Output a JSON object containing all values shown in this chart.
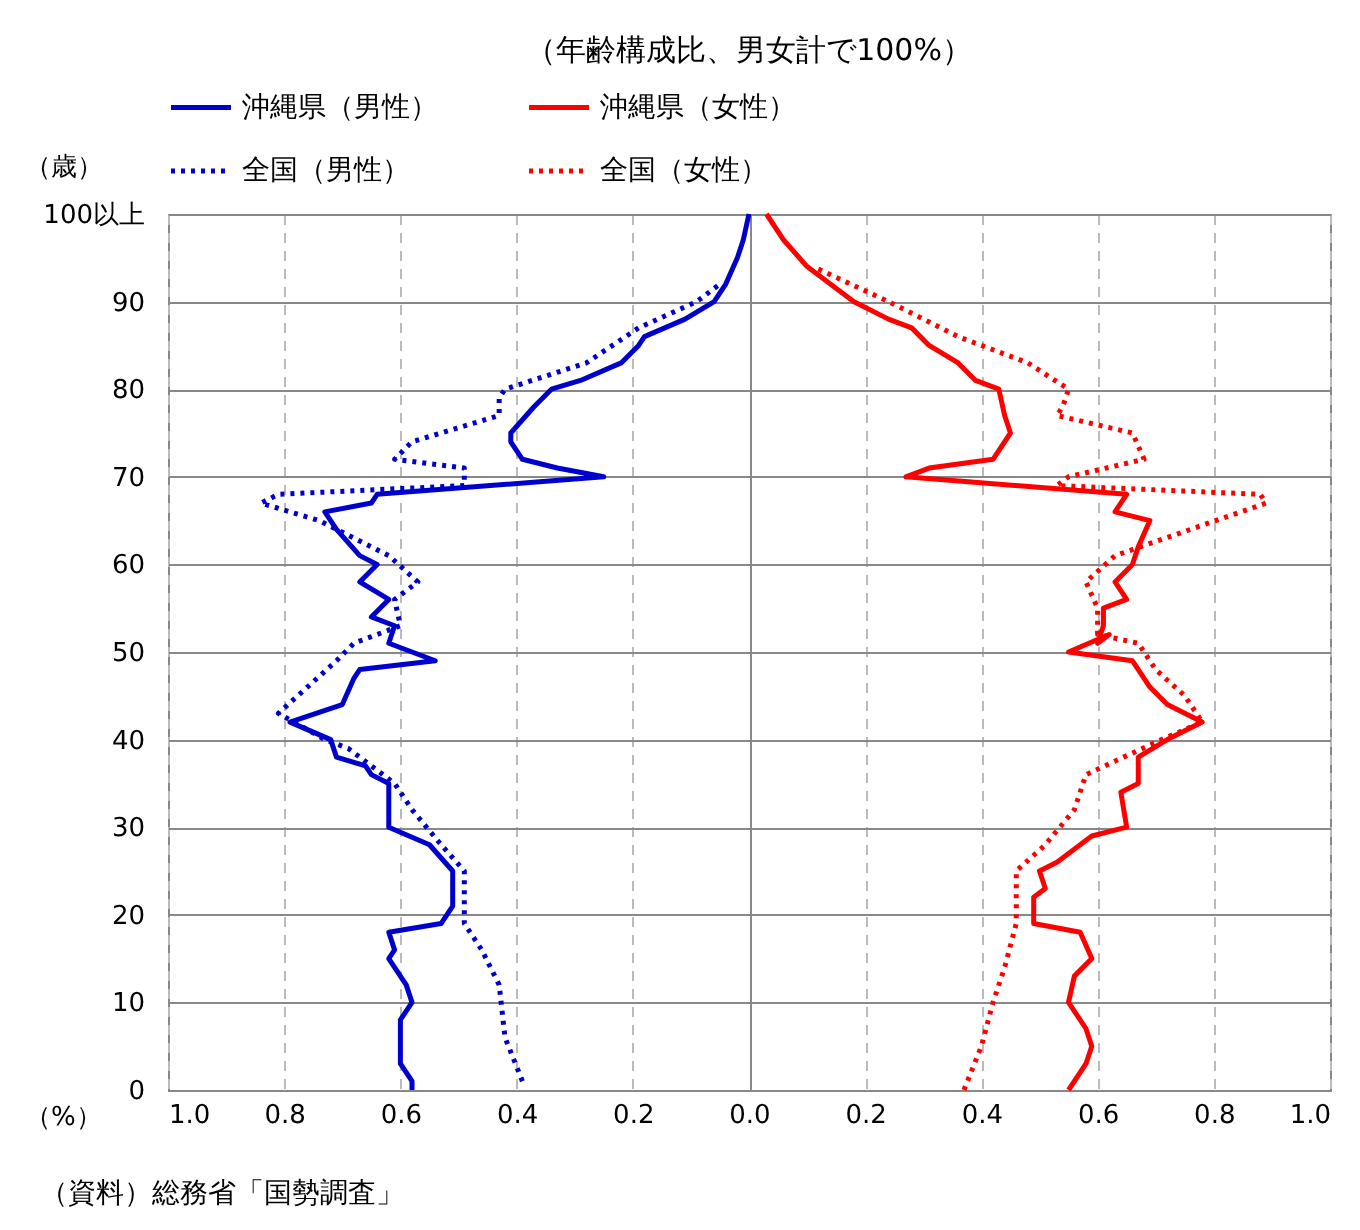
{
  "chart_data": {
    "type": "line",
    "title": "（年齢構成比、男女計で100%）",
    "xlabel": "（%）",
    "ylabel": "（歳）",
    "annotations": [
      "（資料）総務省「国勢調査」"
    ],
    "xlim": [
      -1,
      1
    ],
    "xticks": [
      {
        "value": -1,
        "label": "1.0"
      },
      {
        "value": -0.8,
        "label": "0.8"
      },
      {
        "value": -0.6,
        "label": "0.6"
      },
      {
        "value": -0.4,
        "label": "0.4"
      },
      {
        "value": -0.2,
        "label": "0.2"
      },
      {
        "value": 0,
        "label": "0.0"
      },
      0.2,
      0.4,
      0.6,
      0.8,
      {
        "value": 1,
        "label": "1.0"
      }
    ],
    "ylim": [
      0,
      100
    ],
    "yticks": [
      0,
      10,
      20,
      30,
      40,
      50,
      60,
      70,
      80,
      90,
      {
        "value": 100,
        "label": "100以上"
      }
    ],
    "grid": true,
    "legend": "top",
    "series": [
      {
        "name": "沖縄県（男性）",
        "color": "#0000cc",
        "line_style": "solid",
        "x": [
          -0.58,
          -0.58,
          -0.6,
          -0.6,
          -0.6,
          -0.58,
          -0.59,
          -0.62,
          -0.61,
          -0.62,
          -0.53,
          -0.51,
          -0.51,
          -0.51,
          -0.55,
          -0.62,
          -0.62,
          -0.62,
          -0.65,
          -0.66,
          -0.71,
          -0.72,
          -0.79,
          -0.7,
          -0.68,
          -0.67,
          -0.54,
          -0.62,
          -0.61,
          -0.65,
          -0.62,
          -0.67,
          -0.64,
          -0.67,
          -0.71,
          -0.73,
          -0.65,
          -0.64,
          -0.25,
          -0.33,
          -0.39,
          -0.41,
          -0.41,
          -0.37,
          -0.34,
          -0.29,
          -0.22,
          -0.19,
          -0.18,
          -0.11,
          -0.06,
          -0.04,
          -0.02,
          -0.01,
          0
        ],
        "values": [
          0,
          1,
          3,
          5,
          8,
          10,
          12,
          15,
          16,
          18,
          19,
          21,
          23,
          25,
          28,
          30,
          32,
          35,
          36,
          37,
          38,
          40,
          42,
          44,
          47,
          48,
          49,
          51,
          53,
          54,
          56,
          58,
          60,
          61,
          64,
          66,
          67,
          68,
          70,
          71,
          72,
          74,
          75,
          78,
          80,
          81,
          83,
          85,
          86,
          88,
          90,
          92,
          95,
          97,
          100
        ]
      },
      {
        "name": "沖縄県（女性）",
        "color": "#ff0000",
        "line_style": "solid",
        "x": [
          0.55,
          0.58,
          0.59,
          0.58,
          0.55,
          0.56,
          0.59,
          0.57,
          0.49,
          0.49,
          0.51,
          0.5,
          0.53,
          0.59,
          0.65,
          0.64,
          0.67,
          0.67,
          0.72,
          0.78,
          0.72,
          0.69,
          0.66,
          0.55,
          0.62,
          0.6,
          0.61,
          0.61,
          0.65,
          0.63,
          0.66,
          0.67,
          0.69,
          0.63,
          0.65,
          0.27,
          0.31,
          0.42,
          0.45,
          0.44,
          0.43,
          0.39,
          0.36,
          0.31,
          0.28,
          0.24,
          0.18,
          0.12,
          0.1,
          0.06,
          0.03
        ],
        "values": [
          0,
          3,
          5,
          7,
          10,
          13,
          15,
          18,
          19,
          22,
          23,
          25,
          26,
          29,
          30,
          34,
          35,
          38,
          40,
          42,
          44,
          46,
          49,
          50,
          52,
          51,
          53,
          55,
          56,
          58,
          60,
          62,
          65,
          66,
          68,
          70,
          71,
          72,
          75,
          77,
          80,
          81,
          83,
          85,
          87,
          88,
          90,
          93,
          94,
          97,
          100
        ]
      },
      {
        "name": "全国（男性）",
        "color": "#0000cc",
        "line_style": "dotted",
        "x": [
          -0.39,
          -0.42,
          -0.43,
          -0.46,
          -0.49,
          -0.49,
          -0.49,
          -0.53,
          -0.58,
          -0.61,
          -0.69,
          -0.73,
          -0.81,
          -0.71,
          -0.68,
          -0.6,
          -0.61,
          -0.57,
          -0.62,
          -0.74,
          -0.84,
          -0.81,
          -0.49,
          -0.49,
          -0.61,
          -0.58,
          -0.43,
          -0.43,
          -0.42,
          -0.28,
          -0.19,
          -0.09,
          -0.05
        ],
        "values": [
          1,
          6,
          12,
          16,
          19,
          22,
          25,
          28,
          32,
          35,
          39,
          40,
          43,
          49,
          51,
          53,
          56,
          58,
          61,
          65,
          67,
          68,
          69,
          71,
          72,
          74,
          77,
          79,
          80,
          83,
          87,
          90,
          92
        ]
      },
      {
        "name": "全国（女性）",
        "color": "#ff0000",
        "line_style": "dotted",
        "x": [
          0.37,
          0.4,
          0.42,
          0.44,
          0.46,
          0.46,
          0.51,
          0.56,
          0.58,
          0.71,
          0.78,
          0.75,
          0.7,
          0.67,
          0.6,
          0.6,
          0.58,
          0.63,
          0.76,
          0.89,
          0.88,
          0.53,
          0.55,
          0.68,
          0.66,
          0.53,
          0.54,
          0.55,
          0.48,
          0.36,
          0.24,
          0.11
        ],
        "values": [
          0,
          5,
          10,
          14,
          19,
          25,
          28,
          32,
          36,
          40,
          42,
          45,
          48,
          51,
          52,
          55,
          58,
          61,
          64,
          67,
          68,
          69,
          70,
          72,
          75,
          77,
          78,
          80,
          83,
          86,
          90,
          94
        ]
      }
    ]
  }
}
